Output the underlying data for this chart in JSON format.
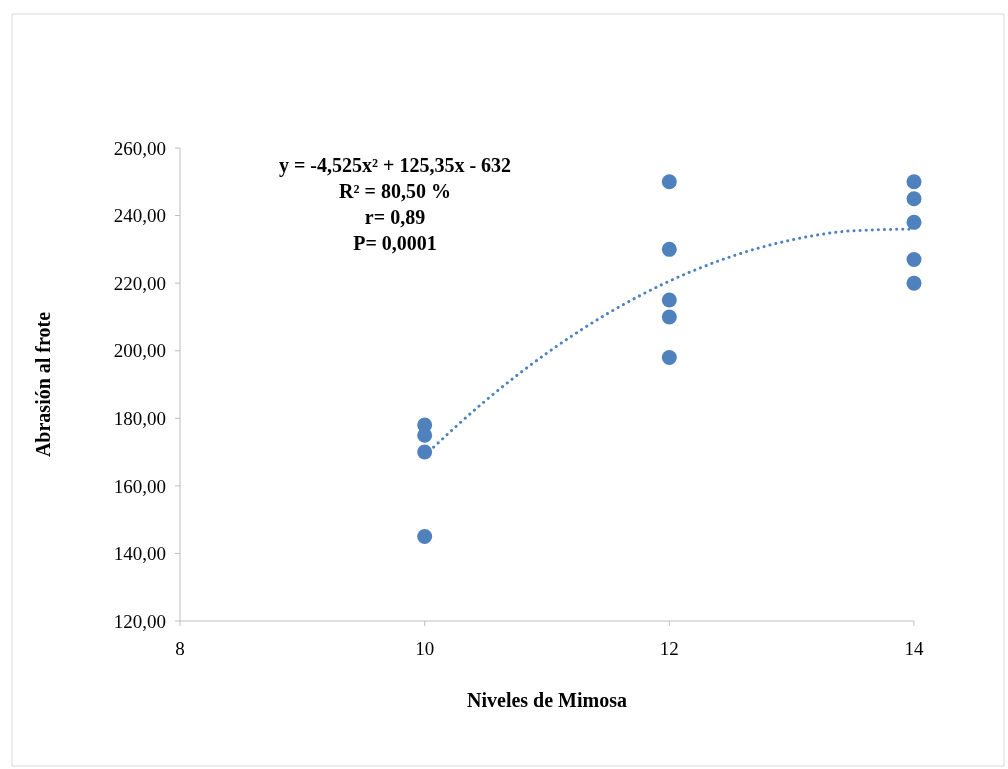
{
  "chart_data": {
    "type": "scatter",
    "xlabel": "Niveles de Mimosa",
    "ylabel": "Abrasión al frote",
    "xlim": [
      8,
      14
    ],
    "xticks": [
      8,
      10,
      12,
      14
    ],
    "ylim": [
      120,
      260
    ],
    "yticks": [
      {
        "value": 120,
        "label": "120,00"
      },
      {
        "value": 140,
        "label": "140,00"
      },
      {
        "value": 160,
        "label": "160,00"
      },
      {
        "value": 180,
        "label": "180,00"
      },
      {
        "value": 200,
        "label": "200,00"
      },
      {
        "value": 220,
        "label": "220,00"
      },
      {
        "value": 240,
        "label": "240,00"
      },
      {
        "value": 260,
        "label": "260,00"
      }
    ],
    "grid": false,
    "annotations": [
      "y = -4,525x² + 125,35x - 632",
      "R² = 80,50 %",
      "r= 0,89",
      "P= 0,0001"
    ],
    "series": [
      {
        "color": "#4f81bd",
        "marker": "circle",
        "x": [
          10,
          10,
          10,
          10,
          12,
          12,
          12,
          12,
          12,
          14,
          14,
          14,
          14,
          14
        ],
        "values": [
          178,
          175,
          170,
          145,
          250,
          230,
          215,
          210,
          198,
          250,
          245,
          238,
          227,
          220
        ]
      },
      {
        "type": "line",
        "color": "#4f81bd",
        "line_style": "dotted",
        "marker": "none",
        "x": [
          10,
          10.5,
          11,
          11.5,
          12,
          12.5,
          13,
          13.5,
          14
        ],
        "values": [
          169,
          185.3,
          199.3,
          211.1,
          220.6,
          227.8,
          232.8,
          235.5,
          236
        ]
      }
    ]
  }
}
